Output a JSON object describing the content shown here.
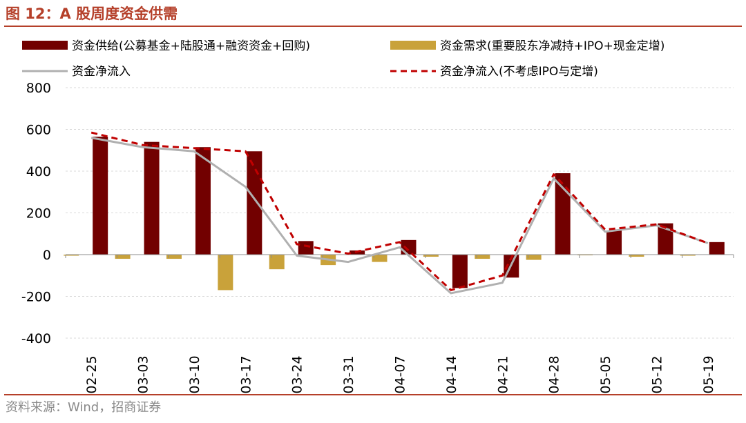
{
  "header": {
    "title": "图 12：A 股周度资金供需"
  },
  "footer": {
    "source": "资料来源：Wind，招商证券"
  },
  "colors": {
    "title": "#b5402a",
    "supply_bar": "#720000",
    "demand_bar": "#c9a23a",
    "net_line": "#b0b0b0",
    "net_excl_line": "#c00000",
    "grid": "#d9d9d9"
  },
  "chart_data": {
    "type": "bar",
    "title": "A 股周度资金供需",
    "categories": [
      "02-25",
      "03-03",
      "03-10",
      "03-17",
      "03-24",
      "03-31",
      "04-07",
      "04-14",
      "04-21",
      "04-28",
      "05-05",
      "05-12",
      "05-19"
    ],
    "ylim": [
      -400,
      800
    ],
    "yticks": [
      -400,
      -200,
      0,
      200,
      400,
      600,
      800
    ],
    "grid": true,
    "legend_position": "top",
    "series": [
      {
        "name": "资金供给(公募基金+陆股通+融资资金+回购)",
        "kind": "bar",
        "color": "#720000",
        "values": [
          565,
          540,
          515,
          495,
          65,
          20,
          70,
          -160,
          -110,
          390,
          115,
          150,
          60
        ]
      },
      {
        "name": "资金需求(重要股东净减持+IPO+现金定增)",
        "kind": "bar",
        "color": "#c9a23a",
        "values": [
          -5,
          -20,
          -20,
          -170,
          -70,
          -50,
          -35,
          -10,
          -20,
          -25,
          -3,
          -10,
          -5
        ]
      },
      {
        "name": "资金净流入",
        "kind": "line",
        "color": "#b0b0b0",
        "dash": false,
        "values": [
          560,
          515,
          495,
          325,
          -5,
          -35,
          35,
          -185,
          -135,
          365,
          110,
          140,
          55
        ]
      },
      {
        "name": "资金净流入(不考虑IPO与定增)",
        "kind": "line",
        "color": "#c00000",
        "dash": true,
        "values": [
          585,
          525,
          510,
          495,
          50,
          5,
          60,
          -170,
          -100,
          385,
          120,
          145,
          55
        ]
      }
    ]
  }
}
